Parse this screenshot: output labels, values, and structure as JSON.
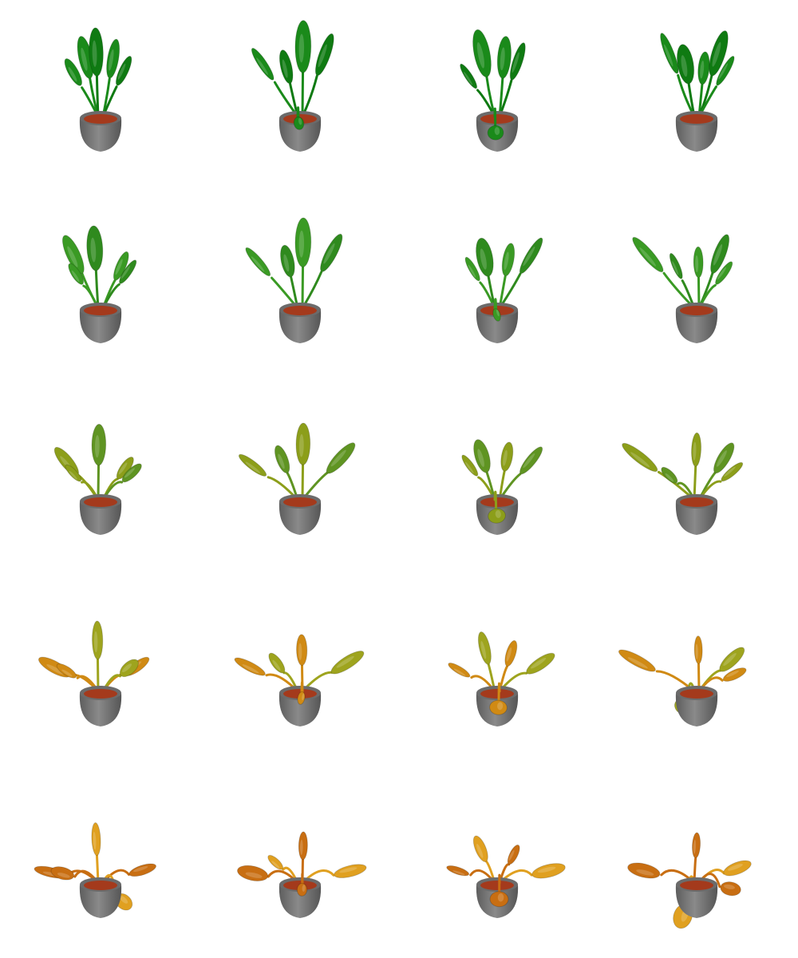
{
  "grid": {
    "rows": 5,
    "columns": 4,
    "stages": [
      {
        "stage": 1,
        "leaf_colors": [
          "#1a8a1a",
          "#0f7a12"
        ],
        "droop": 0.0,
        "plants": [
          {
            "leaves": [
              [
                -22,
                80,
                16,
                0.95
              ],
              [
                -6,
                88,
                16,
                1
              ],
              [
                18,
                78,
                14,
                0.9
              ],
              [
                34,
                60,
                12,
                0.85
              ],
              [
                -40,
                58,
                14,
                0.8
              ]
            ]
          },
          {
            "leaves": [
              [
                -55,
                70,
                12,
                0.8
              ],
              [
                -20,
                66,
                14,
                0.9
              ],
              [
                4,
                96,
                18,
                1
              ],
              [
                36,
                84,
                14,
                0.9
              ],
              [
                -4,
                30,
                14,
                0.8
              ]
            ]
          },
          {
            "leaves": [
              [
                -22,
                86,
                18,
                1
              ],
              [
                -42,
                52,
                10,
                0.8
              ],
              [
                10,
                80,
                16,
                0.95
              ],
              [
                30,
                74,
                12,
                0.9
              ],
              [
                -6,
                36,
                20,
                0.9
              ]
            ]
          },
          {
            "leaves": [
              [
                -40,
                86,
                12,
                0.85
              ],
              [
                -16,
                70,
                18,
                1
              ],
              [
                10,
                64,
                14,
                0.9
              ],
              [
                32,
                86,
                16,
                0.95
              ],
              [
                42,
                60,
                10,
                0.85
              ]
            ]
          }
        ]
      },
      {
        "stage": 2,
        "leaf_colors": [
          "#3a9a24",
          "#2f8a1e"
        ],
        "droop": 0.15,
        "plants": [
          {
            "leaves": [
              [
                -40,
                80,
                16,
                0.95
              ],
              [
                -8,
                84,
                18,
                1
              ],
              [
                30,
                60,
                12,
                0.9
              ],
              [
                40,
                52,
                10,
                0.85
              ],
              [
                -36,
                48,
                12,
                0.8
              ]
            ]
          },
          {
            "leaves": [
              [
                -62,
                72,
                12,
                0.8
              ],
              [
                -18,
                66,
                16,
                0.9
              ],
              [
                4,
                92,
                18,
                1
              ],
              [
                46,
                84,
                14,
                0.9
              ]
            ]
          },
          {
            "leaves": [
              [
                -36,
                56,
                10,
                0.8
              ],
              [
                -18,
                72,
                18,
                1
              ],
              [
                16,
                68,
                14,
                0.9
              ],
              [
                50,
                80,
                12,
                0.9
              ],
              [
                0,
                34,
                10,
                0.8
              ]
            ]
          },
          {
            "leaves": [
              [
                -72,
                86,
                14,
                0.85
              ],
              [
                -30,
                60,
                10,
                0.8
              ],
              [
                2,
                62,
                12,
                0.9
              ],
              [
                34,
                80,
                14,
                0.95
              ],
              [
                40,
                50,
                10,
                0.85
              ]
            ]
          }
        ]
      },
      {
        "stage": 3,
        "leaf_colors": [
          "#8c9e1a",
          "#5f9422"
        ],
        "droop": 0.35,
        "plants": [
          {
            "leaves": [
              [
                -50,
                70,
                14,
                0.95
              ],
              [
                -2,
                78,
                16,
                1
              ],
              [
                36,
                52,
                12,
                0.9
              ],
              [
                46,
                46,
                12,
                0.85
              ],
              [
                -40,
                44,
                10,
                0.8
              ]
            ]
          },
          {
            "leaves": [
              [
                -70,
                72,
                12,
                0.8
              ],
              [
                -26,
                64,
                14,
                0.9
              ],
              [
                4,
                80,
                16,
                1
              ],
              [
                60,
                82,
                14,
                0.95
              ]
            ]
          },
          {
            "leaves": [
              [
                -40,
                58,
                10,
                0.8
              ],
              [
                -22,
                68,
                16,
                1
              ],
              [
                14,
                64,
                14,
                0.9
              ],
              [
                50,
                72,
                12,
                0.9
              ],
              [
                0,
                38,
                22,
                0.9
              ]
            ]
          },
          {
            "leaves": [
              [
                -84,
                90,
                14,
                0.85
              ],
              [
                -40,
                40,
                12,
                0.8
              ],
              [
                0,
                70,
                12,
                0.9
              ],
              [
                40,
                72,
                14,
                0.95
              ],
              [
                52,
                50,
                10,
                0.85
              ]
            ]
          }
        ]
      },
      {
        "stage": 4,
        "leaf_colors": [
          "#d08a14",
          "#9ea41e"
        ],
        "droop": 0.55,
        "plants": [
          {
            "leaves": [
              [
                -68,
                72,
                14,
                0.95
              ],
              [
                -4,
                76,
                12,
                1
              ],
              [
                54,
                60,
                12,
                0.9
              ],
              [
                42,
                48,
                16,
                0.85
              ],
              [
                -50,
                46,
                12,
                0.8
              ]
            ]
          },
          {
            "leaves": [
              [
                -74,
                76,
                12,
                0.85
              ],
              [
                -34,
                54,
                12,
                0.9
              ],
              [
                2,
                60,
                12,
                1
              ],
              [
                70,
                90,
                14,
                0.95
              ],
              [
                4,
                20,
                10,
                0.8
              ]
            ]
          },
          {
            "leaves": [
              [
                -56,
                52,
                10,
                0.8
              ],
              [
                -18,
                72,
                12,
                1
              ],
              [
                20,
                64,
                12,
                0.9
              ],
              [
                64,
                78,
                14,
                0.9
              ],
              [
                4,
                -40,
                22,
                0.9
              ]
            ]
          },
          {
            "leaves": [
              [
                -88,
                96,
                14,
                0.85
              ],
              [
                -20,
                -30,
                22,
                0.9
              ],
              [
                2,
                60,
                10,
                0.9
              ],
              [
                52,
                76,
                14,
                0.95
              ],
              [
                56,
                40,
                12,
                0.85
              ]
            ]
          }
        ]
      },
      {
        "stage": 5,
        "leaf_colors": [
          "#c86e12",
          "#e0a020"
        ],
        "droop": 0.8,
        "plants": [
          {
            "leaves": [
              [
                -74,
                80,
                12,
                0.9
              ],
              [
                -6,
                70,
                10,
                1
              ],
              [
                62,
                66,
                12,
                0.9
              ],
              [
                34,
                -46,
                18,
                0.9
              ],
              [
                -56,
                40,
                16,
                0.85
              ]
            ]
          },
          {
            "leaves": [
              [
                -70,
                72,
                18,
                0.9
              ],
              [
                -36,
                52,
                10,
                0.85
              ],
              [
                4,
                58,
                10,
                1
              ],
              [
                74,
                88,
                14,
                0.9
              ],
              [
                8,
                -28,
                14,
                0.8
              ]
            ]
          },
          {
            "leaves": [
              [
                -58,
                54,
                10,
                0.8
              ],
              [
                -24,
                70,
                12,
                1
              ],
              [
                24,
                58,
                10,
                0.9
              ],
              [
                76,
                90,
                16,
                0.9
              ],
              [
                8,
                -70,
                22,
                0.95
              ]
            ]
          },
          {
            "leaves": [
              [
                -78,
                92,
                18,
                0.85
              ],
              [
                -20,
                -64,
                22,
                0.95
              ],
              [
                0,
                56,
                10,
                0.9
              ],
              [
                60,
                70,
                14,
                0.95
              ],
              [
                50,
                -20,
                18,
                0.85
              ]
            ]
          }
        ]
      }
    ]
  }
}
